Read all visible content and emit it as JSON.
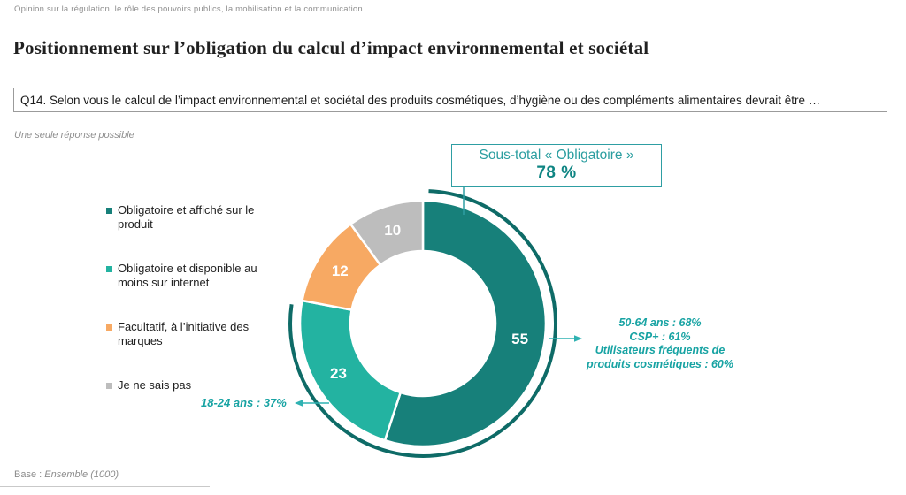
{
  "page": {
    "kicker": "Opinion sur la régulation, le rôle des pouvoirs publics, la mobilisation et la communication",
    "title": "Positionnement sur l’obligation du calcul d’impact environnemental et sociétal",
    "question": "Q14. Selon vous le calcul de l’impact environnemental et sociétal des produits cosmétiques, d’hygiène ou des compléments alimentaires devrait être …",
    "instruction": "Une seule réponse possible",
    "base_label": "Base :",
    "base_value": "Ensemble (1000)"
  },
  "subtotal_box": {
    "line1": "Sous-total « Obligatoire »",
    "line2": "78 %"
  },
  "annotations": {
    "right": [
      "50-64 ans : 68%",
      "CSP+ : 61%",
      "Utilisateurs fréquents de",
      "produits cosmétiques : 60%"
    ],
    "left": "18-24 ans : 37%"
  },
  "chart_data": {
    "type": "pie",
    "subtype": "donut",
    "title": "Positionnement sur l’obligation du calcul d’impact environnemental et sociétal",
    "categories": [
      "Obligatoire et affiché sur le produit",
      "Obligatoire et disponible au moins sur internet",
      "Facultatif, à l’initiative des marques",
      "Je ne sais pas"
    ],
    "values": [
      55,
      23,
      12,
      10
    ],
    "colors": [
      "#17807A",
      "#23B3A1",
      "#F7A963",
      "#BDBDBD"
    ],
    "value_label_color": "#FFFFFF",
    "start_angle_deg": 0,
    "direction": "clockwise",
    "legend_position": "left",
    "subtotal": {
      "label": "Sous-total « Obligatoire »",
      "value": 78,
      "segments": [
        0,
        1
      ],
      "arc_color": "#0E6B67"
    },
    "accent_teal": "#2E9EA3",
    "arrow_color": "#2FB2B2"
  }
}
